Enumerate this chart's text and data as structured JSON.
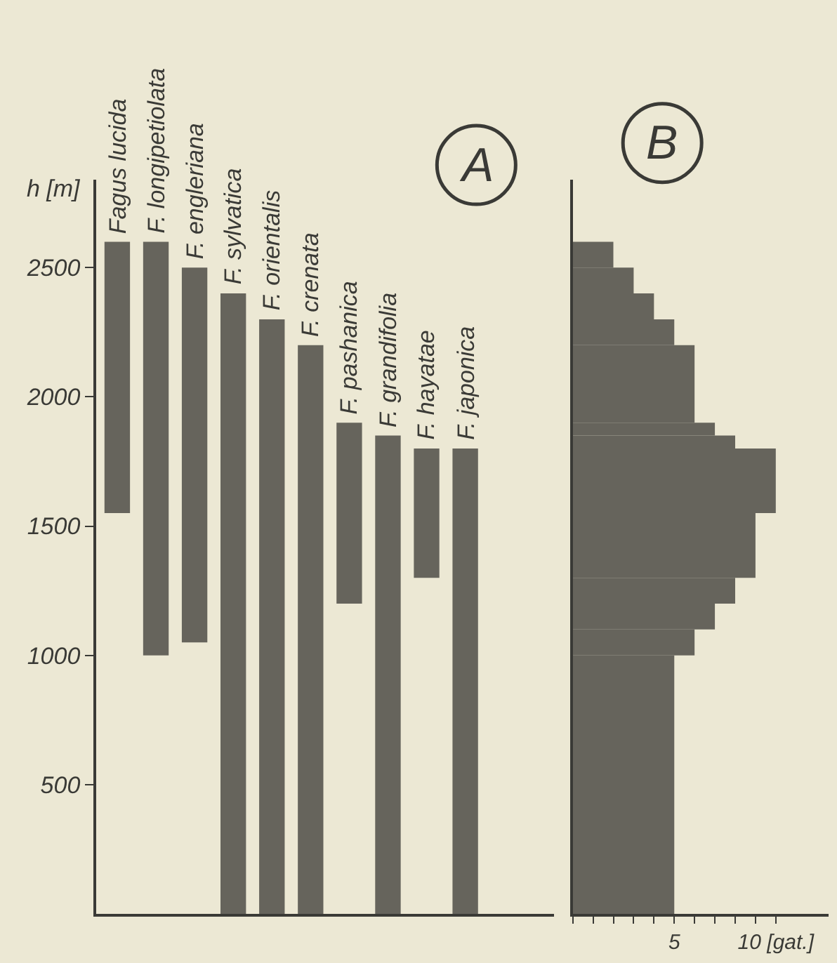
{
  "chart_data": [
    {
      "type": "bar",
      "ylabel": "h [m]",
      "annotations": [
        "A"
      ],
      "categories": [
        "Fagus lucida",
        "F. longipetiolata",
        "F. engleriana",
        "F. sylvatica",
        "F. orientalis",
        "F. crenata",
        "F. pashanica",
        "F. grandifolia",
        "F. hayatae",
        "F. japonica"
      ],
      "base": [
        1550,
        1000,
        1050,
        0,
        0,
        0,
        1200,
        0,
        1300,
        0
      ],
      "values": [
        1050,
        1600,
        1450,
        2400,
        2300,
        2200,
        700,
        1850,
        500,
        1800
      ],
      "color": "#66645c",
      "ylim": [
        0,
        2840
      ],
      "yticks": [
        500,
        1000,
        1500,
        2000,
        2500
      ]
    },
    {
      "type": "histogram",
      "orientation": "horizontal",
      "annotations": [
        "B"
      ],
      "bins": [
        0,
        1000,
        1100,
        1200,
        1300,
        1550,
        1800,
        1850,
        1900,
        2200,
        2300,
        2400,
        2500,
        2600
      ],
      "values": [
        5,
        6,
        7,
        8,
        9,
        10,
        8,
        7,
        6,
        5,
        4,
        3,
        2
      ],
      "color": "#66645c",
      "ylim": [
        0,
        2840
      ],
      "xlim": [
        0,
        12.6
      ],
      "xticks": [
        {
          "value": 0,
          "label": null
        },
        {
          "value": 1,
          "label": null
        },
        {
          "value": 2,
          "label": null
        },
        {
          "value": 3,
          "label": null
        },
        {
          "value": 4,
          "label": null
        },
        5,
        {
          "value": 6,
          "label": null
        },
        {
          "value": 7,
          "label": null
        },
        {
          "value": 8,
          "label": null
        },
        {
          "value": 9,
          "label": null
        },
        {
          "value": 10,
          "label": "10 [gat.]"
        }
      ],
      "tick_labels": "x"
    }
  ]
}
